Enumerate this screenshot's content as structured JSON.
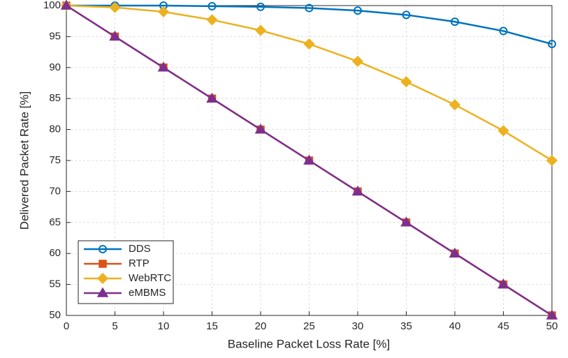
{
  "chart_data": {
    "type": "line",
    "xlabel": "Baseline Packet Loss Rate [%]",
    "ylabel": "Delivered Packet Rate [%]",
    "x": [
      0,
      5,
      10,
      15,
      20,
      25,
      30,
      35,
      40,
      45,
      50
    ],
    "series": [
      {
        "name": "DDS",
        "color": "#0072bd",
        "marker": "circle",
        "values": [
          100,
          100,
          100,
          99.9,
          99.8,
          99.6,
          99.2,
          98.5,
          97.4,
          95.9,
          93.8
        ]
      },
      {
        "name": "RTP",
        "color": "#d95319",
        "marker": "square",
        "values": [
          100,
          95,
          90,
          85,
          80,
          75,
          70,
          65,
          60,
          55,
          50
        ]
      },
      {
        "name": "WebRTC",
        "color": "#edb120",
        "marker": "diamond",
        "values": [
          100,
          99.7,
          99.0,
          97.7,
          96.0,
          93.8,
          91.0,
          87.7,
          84.0,
          79.8,
          75.0
        ]
      },
      {
        "name": "eMBMS",
        "color": "#7e2f8e",
        "marker": "triangle",
        "values": [
          100,
          95,
          90,
          85,
          80,
          75,
          70,
          65,
          60,
          55,
          50
        ]
      }
    ],
    "xlim": [
      0,
      50
    ],
    "xticks": [
      0,
      5,
      10,
      15,
      20,
      25,
      30,
      35,
      40,
      45,
      50
    ],
    "ylim": [
      50,
      100
    ],
    "yticks": [
      50,
      55,
      60,
      65,
      70,
      75,
      80,
      85,
      90,
      95,
      100
    ],
    "grid": true,
    "legend": "lower left"
  }
}
